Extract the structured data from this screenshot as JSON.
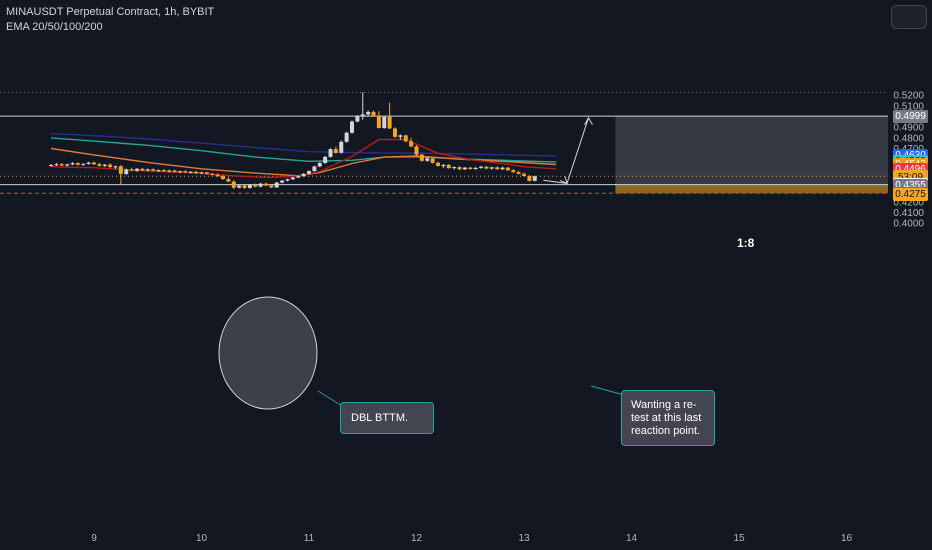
{
  "header": {
    "symbol_line": "MINAUSDT Perpetual Contract, 1h, BYBIT",
    "indicator_line": "EMA 20/50/100/200"
  },
  "annotations": {
    "double_bottom": "DBL BTTM.",
    "retest_note": "Wanting a re-\ntest at this last\nreaction point.",
    "risk_reward": "1:8"
  },
  "price_tags": [
    {
      "label": "0.5000",
      "value": 0.5,
      "bg": "#ffffff",
      "fg": "#131722"
    },
    {
      "label": "0.4999",
      "value": 0.4999,
      "bg": "#787b86",
      "fg": "#ffffff"
    },
    {
      "label": "0.4630",
      "value": 0.463,
      "bg": "#2962ff",
      "fg": "#ffffff"
    },
    {
      "label": "0.4569",
      "value": 0.4569,
      "bg": "#26c6da",
      "fg": "#131722"
    },
    {
      "label": "0.4542",
      "value": 0.4542,
      "bg": "#ff9800",
      "fg": "#ffffff"
    },
    {
      "label": "0.4496",
      "value": 0.4496,
      "bg": "#f23645",
      "fg": "#ffffff"
    },
    {
      "label": "0.4435",
      "value": 0.4435,
      "bg": "#f5a623",
      "fg": "#131722"
    },
    {
      "label": "53:09",
      "value": 0.4422,
      "bg": "#f5a623",
      "fg": "#131722"
    },
    {
      "label": "0.4357",
      "value": 0.4357,
      "bg": "#ffffff",
      "fg": "#131722"
    },
    {
      "label": "0.4355",
      "value": 0.4344,
      "bg": "#787b86",
      "fg": "#ffffff"
    },
    {
      "label": "0.4276",
      "value": 0.4276,
      "bg": "#f23645",
      "fg": "#ffffff"
    },
    {
      "label": "0.4275",
      "value": 0.4262,
      "bg": "#f5a623",
      "fg": "#131722"
    }
  ],
  "chart_data": {
    "type": "candlestick",
    "title": "MINAUSDT Perpetual Contract, 1h, BYBIT",
    "indicators": [
      "EMA 20",
      "EMA 50",
      "EMA 100",
      "EMA 200"
    ],
    "x_ticks": [
      "9",
      "10",
      "11",
      "12",
      "13",
      "14",
      "15",
      "16"
    ],
    "y_ticks": [
      "0.5200",
      "0.5100",
      "0.4900",
      "0.4800",
      "0.4700",
      "0.4200",
      "0.4100",
      "0.4000"
    ],
    "y_range": [
      0.395,
      0.5255
    ],
    "x_range": [
      8.6,
      16.45
    ],
    "colors": {
      "bull": "#d1d4dc",
      "bear": "#f5a623",
      "ema20": "#b71c1c",
      "ema50": "#e07b39",
      "ema100": "#26a69a",
      "ema200": "#2a2e8f",
      "target_zone": "#363a45",
      "stop_zone": "#8a6a1f"
    },
    "horizontal_levels": [
      {
        "value": 0.4999,
        "style": "solid",
        "color": "#d1d4dc"
      },
      {
        "value": 0.4357,
        "style": "solid",
        "color": "#d1d4dc"
      },
      {
        "value": 0.4435,
        "style": "dotted",
        "color": "#f5a623"
      },
      {
        "value": 0.4276,
        "style": "dashed",
        "color": "#f23645"
      },
      {
        "value": 0.522,
        "style": "dotted",
        "color": "#787b86"
      }
    ],
    "position": {
      "entry": 0.4357,
      "target": 0.4999,
      "stop": 0.4276,
      "x_start": 13.85,
      "x_end": 16.45,
      "ratio": "1:8"
    },
    "projection": [
      {
        "x": 13.18,
        "y": 0.4397
      },
      {
        "x": 13.4,
        "y": 0.4368
      },
      {
        "x": 13.6,
        "y": 0.4983
      }
    ],
    "ema20": [
      [
        8.6,
        0.4525
      ],
      [
        9.0,
        0.4515
      ],
      [
        9.5,
        0.4485
      ],
      [
        9.9,
        0.447
      ],
      [
        10.3,
        0.444
      ],
      [
        10.6,
        0.4425
      ],
      [
        10.9,
        0.4435
      ],
      [
        11.1,
        0.448
      ],
      [
        11.4,
        0.462
      ],
      [
        11.65,
        0.478
      ],
      [
        11.9,
        0.478
      ],
      [
        12.2,
        0.465
      ],
      [
        12.5,
        0.459
      ],
      [
        12.8,
        0.4555
      ],
      [
        13.0,
        0.4525
      ],
      [
        13.3,
        0.4505
      ]
    ],
    "ema50": [
      [
        8.6,
        0.4695
      ],
      [
        9.0,
        0.4635
      ],
      [
        9.5,
        0.4565
      ],
      [
        10.0,
        0.4505
      ],
      [
        10.5,
        0.4465
      ],
      [
        10.9,
        0.444
      ],
      [
        11.1,
        0.447
      ],
      [
        11.4,
        0.4555
      ],
      [
        11.7,
        0.4615
      ],
      [
        12.0,
        0.4625
      ],
      [
        12.4,
        0.4595
      ],
      [
        12.8,
        0.4575
      ],
      [
        13.3,
        0.4545
      ]
    ],
    "ema100": [
      [
        8.6,
        0.4795
      ],
      [
        9.0,
        0.4765
      ],
      [
        9.5,
        0.4725
      ],
      [
        10.0,
        0.4675
      ],
      [
        10.5,
        0.4615
      ],
      [
        11.0,
        0.4575
      ],
      [
        11.4,
        0.4585
      ],
      [
        11.7,
        0.4615
      ],
      [
        12.0,
        0.4618
      ],
      [
        12.5,
        0.4595
      ],
      [
        13.0,
        0.4578
      ],
      [
        13.3,
        0.4568
      ]
    ],
    "ema200": [
      [
        8.6,
        0.4835
      ],
      [
        9.0,
        0.4815
      ],
      [
        9.5,
        0.4785
      ],
      [
        10.0,
        0.4745
      ],
      [
        10.5,
        0.4705
      ],
      [
        11.0,
        0.4665
      ],
      [
        11.5,
        0.4655
      ],
      [
        12.0,
        0.4652
      ],
      [
        12.5,
        0.4643
      ],
      [
        13.0,
        0.4632
      ],
      [
        13.3,
        0.4625
      ]
    ],
    "candles": [
      [
        8.6,
        0.4535,
        0.455,
        0.4525,
        0.454
      ],
      [
        8.65,
        0.454,
        0.456,
        0.4532,
        0.4548
      ],
      [
        8.7,
        0.4548,
        0.456,
        0.453,
        0.4536
      ],
      [
        8.75,
        0.4536,
        0.4553,
        0.4528,
        0.4547
      ],
      [
        8.8,
        0.4547,
        0.4568,
        0.454,
        0.4558
      ],
      [
        8.85,
        0.4558,
        0.4566,
        0.4537,
        0.4543
      ],
      [
        8.9,
        0.4543,
        0.4558,
        0.4534,
        0.4551
      ],
      [
        8.95,
        0.4551,
        0.457,
        0.4545,
        0.4563
      ],
      [
        9.0,
        0.4563,
        0.4572,
        0.4541,
        0.4548
      ],
      [
        9.05,
        0.4548,
        0.4561,
        0.4527,
        0.4533
      ],
      [
        9.1,
        0.4533,
        0.455,
        0.4522,
        0.4544
      ],
      [
        9.15,
        0.4544,
        0.4557,
        0.4515,
        0.4521
      ],
      [
        9.2,
        0.4521,
        0.4535,
        0.4505,
        0.4528
      ],
      [
        9.25,
        0.4528,
        0.4541,
        0.4358,
        0.4457
      ],
      [
        9.3,
        0.4457,
        0.4508,
        0.4446,
        0.4498
      ],
      [
        9.35,
        0.4498,
        0.4516,
        0.4482,
        0.4487
      ],
      [
        9.4,
        0.4487,
        0.4512,
        0.4477,
        0.4505
      ],
      [
        9.45,
        0.4505,
        0.4514,
        0.4484,
        0.449
      ],
      [
        9.5,
        0.449,
        0.4506,
        0.4482,
        0.4501
      ],
      [
        9.55,
        0.4501,
        0.4509,
        0.4482,
        0.4487
      ],
      [
        9.6,
        0.4487,
        0.4499,
        0.4474,
        0.4493
      ],
      [
        9.65,
        0.4493,
        0.4503,
        0.4477,
        0.4481
      ],
      [
        9.7,
        0.4481,
        0.4496,
        0.4471,
        0.4489
      ],
      [
        9.75,
        0.4489,
        0.4497,
        0.4469,
        0.4474
      ],
      [
        9.8,
        0.4474,
        0.4488,
        0.4466,
        0.4482
      ],
      [
        9.85,
        0.4482,
        0.4492,
        0.4464,
        0.447
      ],
      [
        9.9,
        0.447,
        0.4484,
        0.446,
        0.4477
      ],
      [
        9.95,
        0.4477,
        0.4485,
        0.4458,
        0.4463
      ],
      [
        10.0,
        0.4463,
        0.4478,
        0.4455,
        0.4471
      ],
      [
        10.05,
        0.4471,
        0.4478,
        0.445,
        0.4457
      ],
      [
        10.1,
        0.4457,
        0.4468,
        0.4443,
        0.4449
      ],
      [
        10.15,
        0.4449,
        0.4462,
        0.4431,
        0.4436
      ],
      [
        10.2,
        0.4436,
        0.4448,
        0.4401,
        0.4409
      ],
      [
        10.25,
        0.4409,
        0.4426,
        0.438,
        0.4386
      ],
      [
        10.3,
        0.4386,
        0.4398,
        0.4315,
        0.4328
      ],
      [
        10.35,
        0.4328,
        0.4358,
        0.4322,
        0.4349
      ],
      [
        10.4,
        0.4349,
        0.4361,
        0.4317,
        0.4326
      ],
      [
        10.45,
        0.4326,
        0.4362,
        0.4319,
        0.4353
      ],
      [
        10.5,
        0.4353,
        0.4367,
        0.4331,
        0.4338
      ],
      [
        10.55,
        0.4338,
        0.4373,
        0.4332,
        0.4366
      ],
      [
        10.6,
        0.4366,
        0.4376,
        0.4342,
        0.4349
      ],
      [
        10.65,
        0.4349,
        0.4362,
        0.4325,
        0.4331
      ],
      [
        10.7,
        0.4331,
        0.4382,
        0.4327,
        0.4376
      ],
      [
        10.75,
        0.4376,
        0.4401,
        0.437,
        0.4394
      ],
      [
        10.8,
        0.4394,
        0.4413,
        0.4387,
        0.4407
      ],
      [
        10.85,
        0.4407,
        0.443,
        0.44,
        0.4423
      ],
      [
        10.9,
        0.4423,
        0.4441,
        0.4418,
        0.4436
      ],
      [
        10.95,
        0.4436,
        0.4465,
        0.443,
        0.4458
      ],
      [
        11.0,
        0.4458,
        0.449,
        0.4451,
        0.4484
      ],
      [
        11.05,
        0.4484,
        0.4535,
        0.4478,
        0.4527
      ],
      [
        11.1,
        0.4527,
        0.4568,
        0.452,
        0.456
      ],
      [
        11.15,
        0.456,
        0.4625,
        0.4553,
        0.4617
      ],
      [
        11.2,
        0.4617,
        0.4698,
        0.461,
        0.4689
      ],
      [
        11.25,
        0.4689,
        0.4712,
        0.4645,
        0.4655
      ],
      [
        11.3,
        0.4655,
        0.477,
        0.4648,
        0.4758
      ],
      [
        11.35,
        0.4758,
        0.4852,
        0.475,
        0.4843
      ],
      [
        11.4,
        0.4843,
        0.4958,
        0.4835,
        0.4948
      ],
      [
        11.45,
        0.4948,
        0.5008,
        0.494,
        0.4998
      ],
      [
        11.5,
        0.4998,
        0.5222,
        0.4965,
        0.5015
      ],
      [
        11.55,
        0.5015,
        0.5052,
        0.4995,
        0.5038
      ],
      [
        11.6,
        0.5038,
        0.505,
        0.4995,
        0.5002
      ],
      [
        11.65,
        0.5002,
        0.5045,
        0.4882,
        0.4888
      ],
      [
        11.7,
        0.4888,
        0.4998,
        0.488,
        0.4992
      ],
      [
        11.75,
        0.4992,
        0.5125,
        0.4878,
        0.4883
      ],
      [
        11.8,
        0.4883,
        0.4895,
        0.4795,
        0.4805
      ],
      [
        11.85,
        0.4805,
        0.4828,
        0.4775,
        0.4818
      ],
      [
        11.9,
        0.4818,
        0.4825,
        0.4755,
        0.4762
      ],
      [
        11.95,
        0.4762,
        0.4795,
        0.4708,
        0.4715
      ],
      [
        12.0,
        0.4715,
        0.4728,
        0.4628,
        0.4638
      ],
      [
        12.05,
        0.4638,
        0.4646,
        0.4572,
        0.458
      ],
      [
        12.1,
        0.458,
        0.4612,
        0.4572,
        0.4603
      ],
      [
        12.15,
        0.4603,
        0.461,
        0.4554,
        0.4561
      ],
      [
        12.2,
        0.4561,
        0.4572,
        0.4526,
        0.4532
      ],
      [
        12.25,
        0.4532,
        0.4548,
        0.4513,
        0.4542
      ],
      [
        12.3,
        0.4542,
        0.4549,
        0.4506,
        0.4512
      ],
      [
        12.35,
        0.4512,
        0.4528,
        0.4498,
        0.4521
      ],
      [
        12.4,
        0.4521,
        0.4528,
        0.4494,
        0.45
      ],
      [
        12.45,
        0.45,
        0.4522,
        0.4494,
        0.4516
      ],
      [
        12.5,
        0.4516,
        0.4523,
        0.4497,
        0.4503
      ],
      [
        12.55,
        0.4503,
        0.4521,
        0.4497,
        0.4514
      ],
      [
        12.6,
        0.4514,
        0.4532,
        0.4506,
        0.4525
      ],
      [
        12.65,
        0.4525,
        0.4531,
        0.4501,
        0.4507
      ],
      [
        12.7,
        0.4507,
        0.4524,
        0.4498,
        0.4519
      ],
      [
        12.75,
        0.4519,
        0.4528,
        0.4495,
        0.4501
      ],
      [
        12.8,
        0.4501,
        0.4524,
        0.4494,
        0.4516
      ],
      [
        12.85,
        0.4516,
        0.4523,
        0.4486,
        0.4492
      ],
      [
        12.9,
        0.4492,
        0.4504,
        0.4468,
        0.4474
      ],
      [
        12.95,
        0.4474,
        0.4486,
        0.4452,
        0.4458
      ],
      [
        13.0,
        0.4458,
        0.4471,
        0.4432,
        0.4438
      ],
      [
        13.05,
        0.4438,
        0.4447,
        0.4385,
        0.4392
      ],
      [
        13.1,
        0.4392,
        0.4441,
        0.4388,
        0.4435
      ]
    ]
  }
}
